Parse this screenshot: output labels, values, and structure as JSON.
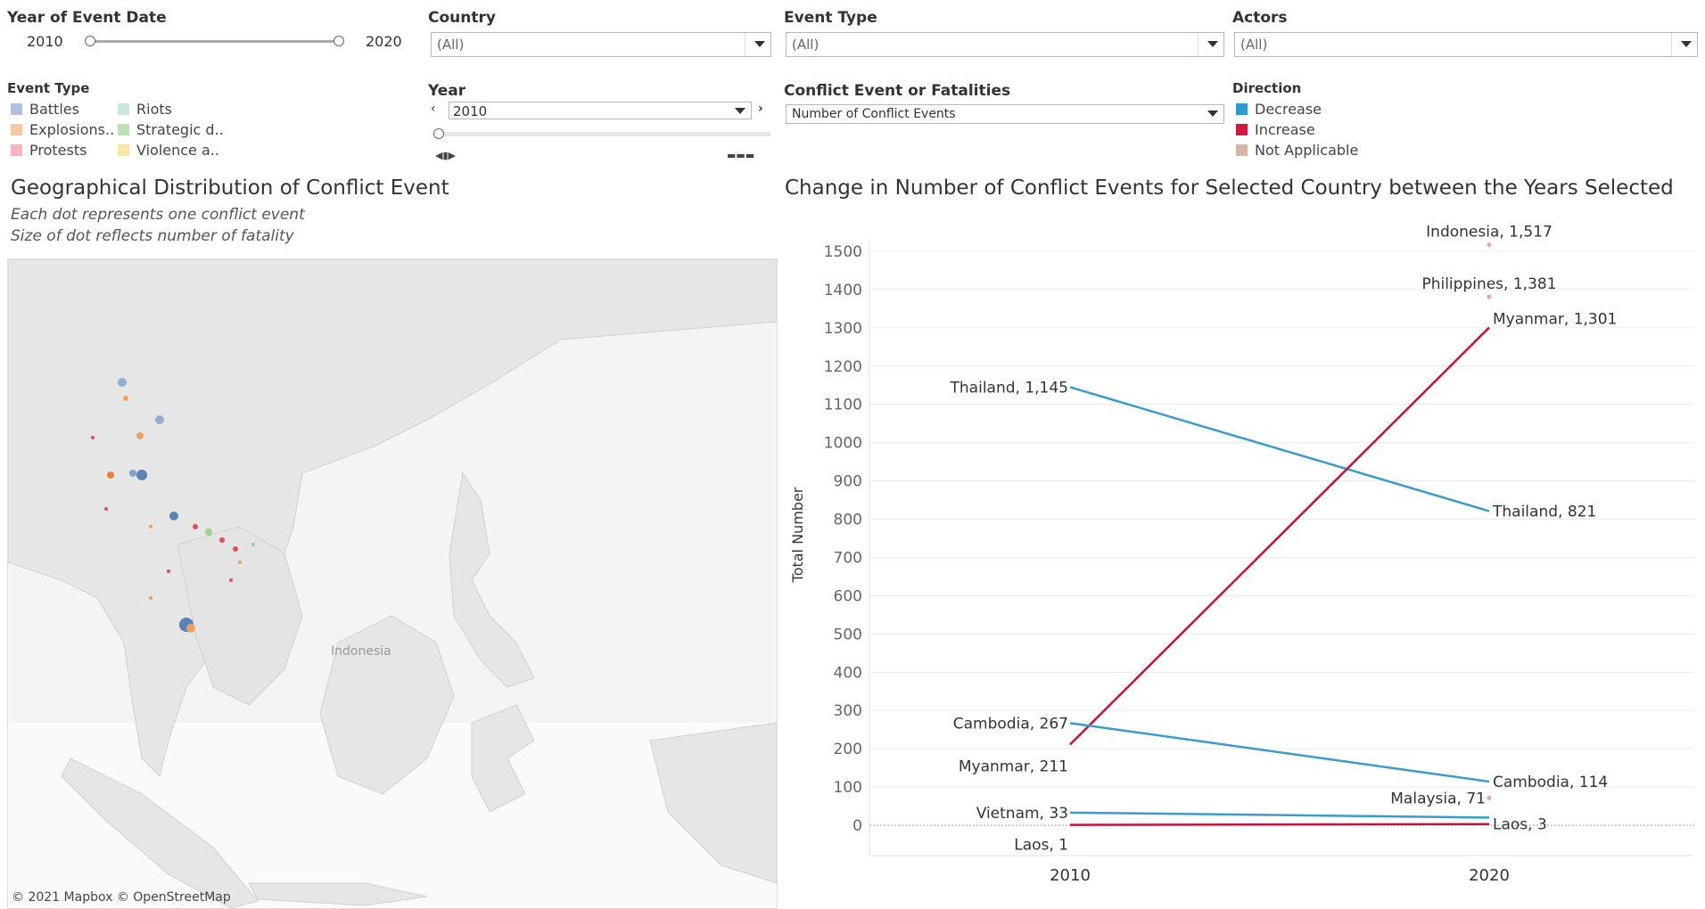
{
  "filters": {
    "year_range": {
      "label": "Year of Event Date",
      "min": "2010",
      "max": "2020"
    },
    "country": {
      "label": "Country",
      "value": "(All)"
    },
    "event_type": {
      "label": "Event Type",
      "value": "(All)"
    },
    "actors": {
      "label": "Actors",
      "value": "(All)"
    },
    "year": {
      "label": "Year",
      "value": "2010"
    },
    "measure": {
      "label": "Conflict Event or Fatalities",
      "value": "Number of Conflict Events"
    }
  },
  "event_legend": {
    "title": "Event Type",
    "items": [
      {
        "label": "Battles",
        "color": "#aec2dc"
      },
      {
        "label": "Riots",
        "color": "#c9e7e1"
      },
      {
        "label": "Explosions..",
        "color": "#f7c9a0"
      },
      {
        "label": "Strategic d..",
        "color": "#bfe0b5"
      },
      {
        "label": "Protests",
        "color": "#f4b6bc"
      },
      {
        "label": "Violence a..",
        "color": "#f7e6a8"
      }
    ]
  },
  "direction_legend": {
    "title": "Direction",
    "items": [
      {
        "label": "Decrease",
        "color": "#2f9ad0"
      },
      {
        "label": "Increase",
        "color": "#d4193f"
      },
      {
        "label": "Not Applicable",
        "color": "#d9b3a6"
      }
    ]
  },
  "map": {
    "title": "Geographical Distribution of Conflict Event",
    "subtitle1": "Each dot represents one conflict event",
    "subtitle2": "Size of dot reflects number of fatality",
    "place_label": "Indonesia",
    "attribution": "© 2021 Mapbox © OpenStreetMap"
  },
  "chart": {
    "title": "Change in Number of Conflict Events for Selected Country between the Years Selected",
    "ylabel": "Total Number"
  },
  "chart_data": {
    "type": "line",
    "x": [
      "2010",
      "2020"
    ],
    "ylim": [
      0,
      1500
    ],
    "yticks": [
      0,
      100,
      200,
      300,
      400,
      500,
      600,
      700,
      800,
      900,
      1000,
      1100,
      1200,
      1300,
      1400,
      1500
    ],
    "grid": true,
    "series": [
      {
        "name": "Thailand",
        "direction": "Decrease",
        "values": [
          1145,
          821
        ],
        "labels": [
          "Thailand, 1,145",
          "Thailand, 821"
        ]
      },
      {
        "name": "Myanmar",
        "direction": "Increase",
        "values": [
          211,
          1301
        ],
        "labels": [
          "Myanmar, 211",
          "Myanmar, 1,301"
        ]
      },
      {
        "name": "Cambodia",
        "direction": "Decrease",
        "values": [
          267,
          114
        ],
        "labels": [
          "Cambodia, 267",
          "Cambodia, 114"
        ]
      },
      {
        "name": "Vietnam",
        "direction": "Decrease",
        "values": [
          33,
          20
        ],
        "labels": [
          "Vietnam, 33",
          ""
        ]
      },
      {
        "name": "Laos",
        "direction": "Increase",
        "values": [
          1,
          3
        ],
        "labels": [
          "Laos, 1",
          "Laos, 3"
        ]
      }
    ],
    "points": [
      {
        "name": "Indonesia",
        "x": "2020",
        "value": 1517,
        "label": "Indonesia, 1,517"
      },
      {
        "name": "Philippines",
        "x": "2020",
        "value": 1381,
        "label": "Philippines, 1,381"
      },
      {
        "name": "Malaysia",
        "x": "2020",
        "value": 71,
        "label": "Malaysia, 71"
      }
    ]
  }
}
